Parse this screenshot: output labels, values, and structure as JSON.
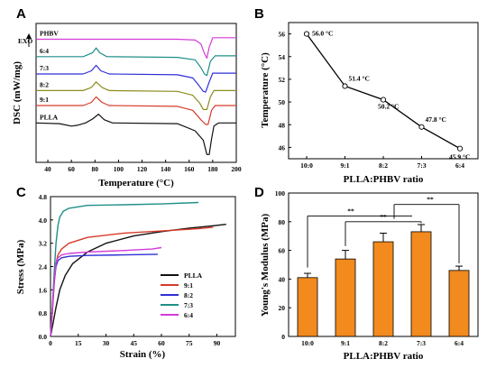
{
  "charts": [
    {
      "id": "A",
      "type": "line",
      "letter": "A",
      "xlabel": "Temperature (°C)",
      "ylabel": "DSC (mW/mg)",
      "xlim": [
        30,
        200
      ],
      "xticks": [
        40,
        60,
        80,
        100,
        120,
        140,
        160,
        180,
        200
      ],
      "y_ticks_shown": false,
      "exo_label": "EXO",
      "exo_direction": "up",
      "series": [
        {
          "name": "PHBV",
          "color": "#d63ad6",
          "offset": 6.0,
          "points": [
            [
              30,
              0
            ],
            [
              150,
              0
            ],
            [
              165,
              -0.05
            ],
            [
              170,
              -0.3
            ],
            [
              173,
              -0.9
            ],
            [
              175,
              -1.2
            ],
            [
              177,
              -0.5
            ],
            [
              180,
              0.1
            ],
            [
              200,
              0.1
            ]
          ]
        },
        {
          "name": "6:4",
          "color": "#1f8f88",
          "offset": 4.9,
          "points": [
            [
              30,
              0
            ],
            [
              70,
              0
            ],
            [
              78,
              0.25
            ],
            [
              81,
              0.55
            ],
            [
              84,
              0.25
            ],
            [
              90,
              0
            ],
            [
              150,
              -0.05
            ],
            [
              165,
              -0.2
            ],
            [
              170,
              -0.7
            ],
            [
              173,
              -1.1
            ],
            [
              175,
              -1.2
            ],
            [
              178,
              -0.3
            ],
            [
              182,
              0.05
            ],
            [
              200,
              0.05
            ]
          ]
        },
        {
          "name": "7:3",
          "color": "#2f2fd6",
          "offset": 3.8,
          "points": [
            [
              30,
              0
            ],
            [
              70,
              0
            ],
            [
              77,
              0.2
            ],
            [
              81,
              0.55
            ],
            [
              85,
              0.2
            ],
            [
              92,
              0
            ],
            [
              150,
              -0.05
            ],
            [
              163,
              -0.25
            ],
            [
              168,
              -0.7
            ],
            [
              172,
              -1.1
            ],
            [
              174,
              -1.15
            ],
            [
              177,
              -0.5
            ],
            [
              180,
              0.05
            ],
            [
              200,
              0.05
            ]
          ]
        },
        {
          "name": "8:2",
          "color": "#8b8b1e",
          "offset": 2.75,
          "points": [
            [
              30,
              0
            ],
            [
              70,
              0
            ],
            [
              77,
              0.2
            ],
            [
              81,
              0.55
            ],
            [
              86,
              0.2
            ],
            [
              92,
              0
            ],
            [
              150,
              -0.05
            ],
            [
              163,
              -0.3
            ],
            [
              169,
              -0.8
            ],
            [
              172,
              -1.2
            ],
            [
              175,
              -1.2
            ],
            [
              178,
              -0.4
            ],
            [
              181,
              0
            ],
            [
              200,
              0
            ]
          ]
        },
        {
          "name": "9:1",
          "color": "#d63a2a",
          "offset": 1.8,
          "points": [
            [
              30,
              0
            ],
            [
              70,
              0
            ],
            [
              77,
              0.2
            ],
            [
              81,
              0.55
            ],
            [
              86,
              0.2
            ],
            [
              92,
              0
            ],
            [
              150,
              -0.05
            ],
            [
              163,
              -0.3
            ],
            [
              170,
              -0.9
            ],
            [
              174,
              -1.2
            ],
            [
              176,
              -1.2
            ],
            [
              179,
              -0.3
            ],
            [
              182,
              0
            ],
            [
              200,
              0
            ]
          ]
        },
        {
          "name": "PLLA",
          "color": "#111111",
          "offset": 0.7,
          "points": [
            [
              30,
              0
            ],
            [
              50,
              -0.05
            ],
            [
              60,
              -0.2
            ],
            [
              65,
              -0.15
            ],
            [
              72,
              0
            ],
            [
              78,
              0.25
            ],
            [
              83,
              0.55
            ],
            [
              88,
              0.2
            ],
            [
              95,
              0
            ],
            [
              150,
              -0.05
            ],
            [
              165,
              -0.5
            ],
            [
              172,
              -1.1
            ],
            [
              175,
              -2.0
            ],
            [
              177,
              -2.0
            ],
            [
              179,
              -1.0
            ],
            [
              181,
              -0.2
            ],
            [
              185,
              0
            ],
            [
              200,
              0
            ]
          ]
        }
      ],
      "ylim": [
        -1.8,
        7.0
      ]
    },
    {
      "id": "B",
      "type": "line",
      "letter": "B",
      "xlabel": "PLLA:PHBV ratio",
      "ylabel": "Temperature (°C)",
      "categories": [
        "10:0",
        "9:1",
        "8:2",
        "7:3",
        "6:4"
      ],
      "values": [
        56.0,
        51.4,
        50.2,
        47.8,
        45.9
      ],
      "labels": [
        "56.0 °C",
        "51.4 °C",
        "50.2 °C",
        "47.8 °C",
        "45.9 °C"
      ],
      "ylim": [
        45,
        57
      ],
      "yticks": [
        46,
        48,
        50,
        52,
        54,
        56
      ],
      "color": "#000000"
    },
    {
      "id": "C",
      "type": "line",
      "letter": "C",
      "xlabel": "Strain (%)",
      "ylabel": "Stress (MPa)",
      "xlim": [
        0,
        100
      ],
      "xticks": [
        0,
        15,
        30,
        45,
        60,
        75,
        90
      ],
      "ylim": [
        0,
        4.8
      ],
      "yticks": [
        0.0,
        0.8,
        1.6,
        2.4,
        3.2,
        4.0,
        4.8
      ],
      "legend": "right",
      "series": [
        {
          "name": "PLLA",
          "color": "#111111",
          "points": [
            [
              0,
              0
            ],
            [
              1.5,
              0.5
            ],
            [
              3,
              1.0
            ],
            [
              5,
              1.6
            ],
            [
              8,
              2.1
            ],
            [
              12,
              2.5
            ],
            [
              20,
              2.9
            ],
            [
              30,
              3.2
            ],
            [
              45,
              3.45
            ],
            [
              60,
              3.6
            ],
            [
              75,
              3.72
            ],
            [
              88,
              3.8
            ],
            [
              95,
              3.85
            ]
          ]
        },
        {
          "name": "9:1",
          "color": "#d63a2a",
          "points": [
            [
              0,
              0
            ],
            [
              1,
              0.8
            ],
            [
              2,
              1.8
            ],
            [
              3,
              2.5
            ],
            [
              4,
              2.8
            ],
            [
              6,
              3.0
            ],
            [
              10,
              3.2
            ],
            [
              20,
              3.4
            ],
            [
              40,
              3.55
            ],
            [
              60,
              3.62
            ],
            [
              80,
              3.7
            ],
            [
              88,
              3.75
            ]
          ]
        },
        {
          "name": "8:2",
          "color": "#2f2fd6",
          "points": [
            [
              0,
              0
            ],
            [
              1,
              0.9
            ],
            [
              2,
              1.9
            ],
            [
              3,
              2.4
            ],
            [
              4,
              2.6
            ],
            [
              6,
              2.7
            ],
            [
              10,
              2.75
            ],
            [
              20,
              2.78
            ],
            [
              40,
              2.8
            ],
            [
              58,
              2.82
            ]
          ]
        },
        {
          "name": "7:3",
          "color": "#1f8f88",
          "points": [
            [
              0,
              0
            ],
            [
              1,
              1.0
            ],
            [
              2,
              2.2
            ],
            [
              3,
              3.2
            ],
            [
              4,
              3.8
            ],
            [
              5,
              4.1
            ],
            [
              7,
              4.3
            ],
            [
              10,
              4.4
            ],
            [
              20,
              4.5
            ],
            [
              40,
              4.52
            ],
            [
              60,
              4.55
            ],
            [
              80,
              4.6
            ]
          ]
        },
        {
          "name": "6:4",
          "color": "#d63ad6",
          "points": [
            [
              0,
              0
            ],
            [
              1,
              0.9
            ],
            [
              2,
              1.9
            ],
            [
              3,
              2.5
            ],
            [
              4,
              2.7
            ],
            [
              6,
              2.8
            ],
            [
              10,
              2.85
            ],
            [
              20,
              2.9
            ],
            [
              40,
              2.95
            ],
            [
              55,
              3.0
            ],
            [
              60,
              3.05
            ]
          ]
        }
      ]
    },
    {
      "id": "D",
      "type": "bar",
      "letter": "D",
      "xlabel": "PLLA:PHBV ratio",
      "ylabel": "Young's Modulus (MPa)",
      "categories": [
        "10:0",
        "9:1",
        "8:2",
        "7:3",
        "6:4"
      ],
      "values": [
        41,
        54,
        66,
        73,
        46
      ],
      "errors": [
        3,
        6,
        6,
        5,
        3
      ],
      "ylim": [
        0,
        100
      ],
      "yticks": [
        0,
        20,
        40,
        60,
        80,
        100
      ],
      "bar_color": "#f28a1e",
      "significance": [
        {
          "label": "**",
          "from": 0,
          "to": "mid"
        },
        {
          "label": "**",
          "from": 1,
          "to": 3
        },
        {
          "label": "**",
          "from": 2,
          "to": 4
        }
      ]
    }
  ]
}
